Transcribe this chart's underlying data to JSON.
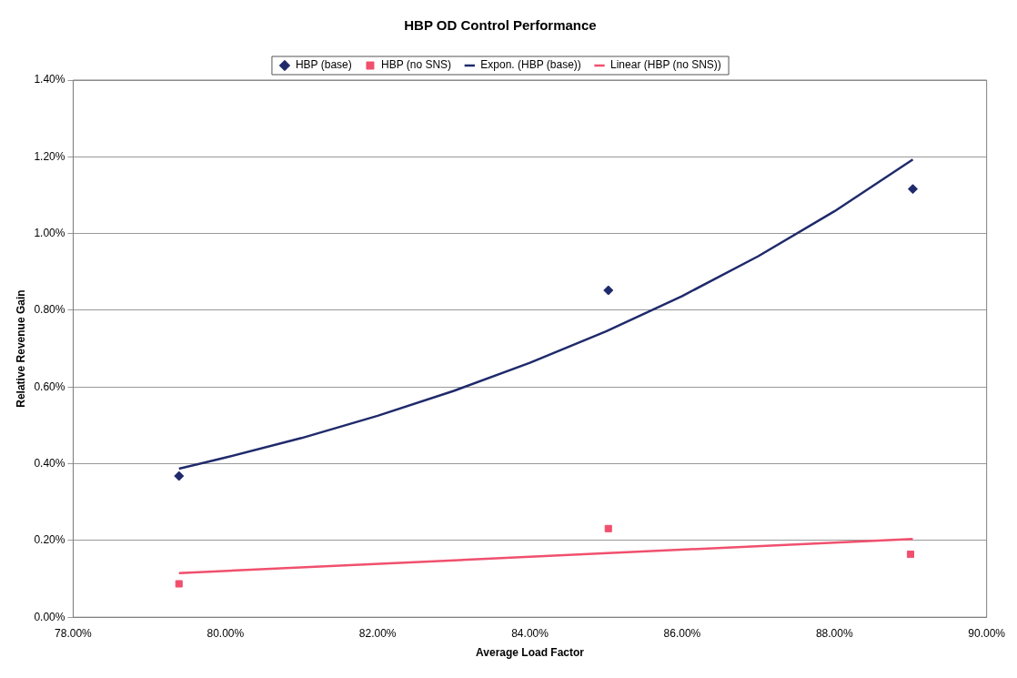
{
  "chart_data": {
    "type": "scatter",
    "title": "HBP OD Control Performance",
    "xlabel": "Average Load Factor",
    "ylabel": "Relative Revenue Gain",
    "xlim": [
      78,
      90
    ],
    "xticks": [
      {
        "value": 78,
        "label": "78.00%"
      },
      {
        "value": 80,
        "label": "80.00%"
      },
      {
        "value": 82,
        "label": "82.00%"
      },
      {
        "value": 84,
        "label": "84.00%"
      },
      {
        "value": 86,
        "label": "86.00%"
      },
      {
        "value": 88,
        "label": "88.00%"
      },
      {
        "value": 90,
        "label": "90.00%"
      }
    ],
    "ylim": [
      0,
      1.4
    ],
    "yticks": [
      {
        "value": 0,
        "label": "0.00%"
      },
      {
        "value": 0.2,
        "label": "0.20%"
      },
      {
        "value": 0.4,
        "label": "0.40%"
      },
      {
        "value": 0.6,
        "label": "0.60%"
      },
      {
        "value": 0.8,
        "label": "0.80%"
      },
      {
        "value": 1.0,
        "label": "1.00%"
      },
      {
        "value": 1.2,
        "label": "1.20%"
      },
      {
        "value": 1.4,
        "label": "1.40%"
      }
    ],
    "grid": "y",
    "legend": "top",
    "series": [
      {
        "name": "HBP (base)",
        "marker": "diamond",
        "color": "#1f2a6b",
        "x": [
          79.39,
          85.03,
          89.03
        ],
        "values": [
          0.368,
          0.852,
          1.116
        ]
      },
      {
        "name": "HBP (no SNS)",
        "marker": "square",
        "color": "#f0506e",
        "x": [
          79.39,
          85.03,
          89.0
        ],
        "values": [
          0.087,
          0.231,
          0.164
        ]
      },
      {
        "name": "Expon. (HBP (base))",
        "type": "line",
        "marker": "none",
        "color": "#1f2a6b",
        "x": [
          79.39,
          80,
          81,
          82,
          83,
          84,
          85,
          86,
          87,
          88,
          89.03
        ],
        "values": [
          0.387,
          0.416,
          0.467,
          0.525,
          0.59,
          0.663,
          0.745,
          0.837,
          0.941,
          1.058,
          1.193
        ]
      },
      {
        "name": "Linear (HBP (no SNS))",
        "type": "line",
        "marker": "none",
        "color": "#f0506e",
        "x": [
          79.39,
          89.03
        ],
        "values": [
          0.115,
          0.204
        ]
      }
    ]
  }
}
